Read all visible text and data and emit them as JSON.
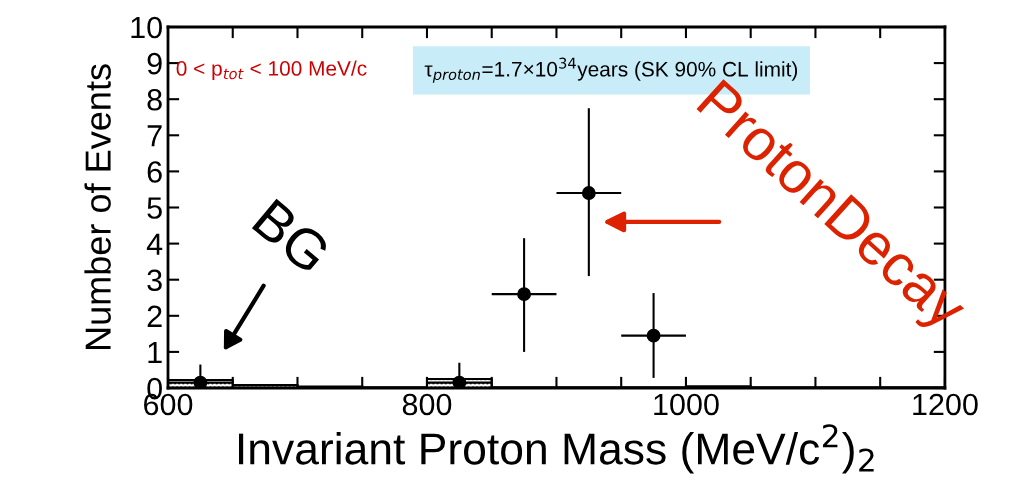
{
  "chart_data": {
    "type": "scatter",
    "xlabel": "Invariant Proton Mass (MeV/c$^{2}$)$_{2}$",
    "ylabel": "Number of Events",
    "xlim": [
      600,
      1200
    ],
    "ylim": [
      0,
      10
    ],
    "xticks": [
      600,
      {
        "value": 650,
        "label": null
      },
      {
        "value": 700,
        "label": null
      },
      {
        "value": 750,
        "label": null
      },
      800,
      {
        "value": 850,
        "label": null
      },
      {
        "value": 900,
        "label": null
      },
      {
        "value": 950,
        "label": null
      },
      1000,
      {
        "value": 1050,
        "label": null
      },
      {
        "value": 1100,
        "label": null
      },
      {
        "value": 1150,
        "label": null
      },
      1200
    ],
    "yticks": [
      0,
      1,
      2,
      3,
      4,
      5,
      6,
      7,
      8,
      9,
      10
    ],
    "marker": "circle",
    "series": [
      {
        "type": "histogram",
        "color": "#000000",
        "bins": [
          600,
          650,
          700,
          750,
          800,
          850,
          900,
          950,
          1000,
          1050,
          1100,
          1150,
          1200
        ],
        "values": [
          0.22,
          0.08,
          0.04,
          0.02,
          0.25,
          0.02,
          0.02,
          0.02,
          0.05,
          0.02,
          0.02,
          0.02
        ]
      },
      {
        "color": "#000000",
        "x": [
          625,
          825,
          875,
          925,
          975
        ],
        "values": [
          0.15,
          0.15,
          2.6,
          5.4,
          1.45
        ],
        "errors": [
          [
            0,
            0.65
          ],
          [
            0,
            0.7
          ],
          [
            1.0,
            4.15
          ],
          [
            3.1,
            7.75
          ],
          [
            0.28,
            2.63
          ]
        ],
        "xerrors": [
          25,
          25,
          25,
          25,
          25
        ]
      }
    ],
    "annotations": [
      "0 < p$_{tot}$ < 100 MeV/c",
      "τ$_{proton}$=1.7×10$^{34}$years (SK 90% CL limit)",
      "BG",
      "ProtonDecay"
    ]
  }
}
